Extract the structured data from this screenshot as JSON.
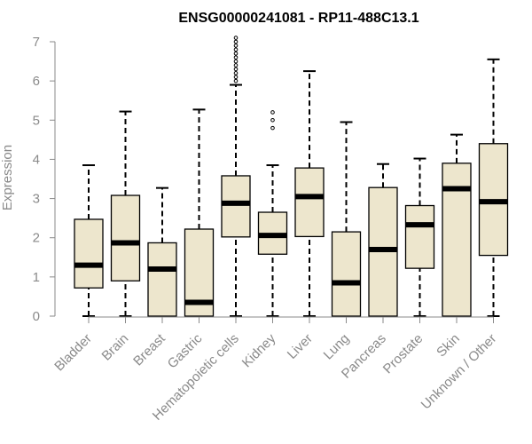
{
  "chart_data": {
    "type": "boxplot",
    "title": "ENSG00000241081 - RP11-488C13.1",
    "xlabel": "",
    "ylabel": "Expression",
    "ylim": [
      0,
      7
    ],
    "yticks": [
      0,
      1,
      2,
      3,
      4,
      5,
      6,
      7
    ],
    "colors": {
      "box_fill": "#ede6cd",
      "box_stroke": "#000000",
      "axis": "#8a8a8a"
    },
    "categories": [
      "Bladder",
      "Brain",
      "Breast",
      "Gastric",
      "Hematopoietic cells",
      "Kidney",
      "Liver",
      "Lung",
      "Pancreas",
      "Prostate",
      "Skin",
      "Unknown / Other"
    ],
    "boxes": [
      {
        "label": "Bladder",
        "min": 0,
        "q1": 0.72,
        "median": 1.3,
        "q3": 2.47,
        "max": 3.85,
        "outliers": []
      },
      {
        "label": "Brain",
        "min": 0,
        "q1": 0.9,
        "median": 1.87,
        "q3": 3.08,
        "max": 5.22,
        "outliers": []
      },
      {
        "label": "Breast",
        "min": 0,
        "q1": 0,
        "median": 1.2,
        "q3": 1.87,
        "max": 3.27,
        "outliers": []
      },
      {
        "label": "Gastric",
        "min": 0,
        "q1": 0,
        "median": 0.35,
        "q3": 2.22,
        "max": 5.27,
        "outliers": []
      },
      {
        "label": "Hematopoietic cells",
        "min": 0,
        "q1": 2.02,
        "median": 2.88,
        "q3": 3.58,
        "max": 5.9,
        "outliers": [
          6.0,
          6.1,
          6.2,
          6.3,
          6.4,
          6.5,
          6.6,
          6.7,
          6.8,
          6.9,
          7.0,
          7.1
        ]
      },
      {
        "label": "Kidney",
        "min": 0,
        "q1": 1.58,
        "median": 2.06,
        "q3": 2.65,
        "max": 3.85,
        "outliers": [
          4.8,
          5.0,
          5.2
        ]
      },
      {
        "label": "Liver",
        "min": 0,
        "q1": 2.03,
        "median": 3.05,
        "q3": 3.78,
        "max": 6.25,
        "outliers": []
      },
      {
        "label": "Lung",
        "min": 0,
        "q1": 0,
        "median": 0.85,
        "q3": 2.15,
        "max": 4.95,
        "outliers": []
      },
      {
        "label": "Pancreas",
        "min": 0,
        "q1": 0,
        "median": 1.7,
        "q3": 3.28,
        "max": 3.88,
        "outliers": []
      },
      {
        "label": "Prostate",
        "min": 0,
        "q1": 1.22,
        "median": 2.33,
        "q3": 2.82,
        "max": 4.02,
        "outliers": []
      },
      {
        "label": "Skin",
        "min": 0,
        "q1": 0,
        "median": 3.25,
        "q3": 3.9,
        "max": 4.63,
        "outliers": []
      },
      {
        "label": "Unknown / Other",
        "min": 0,
        "q1": 1.55,
        "median": 2.92,
        "q3": 4.4,
        "max": 6.55,
        "outliers": []
      }
    ]
  }
}
